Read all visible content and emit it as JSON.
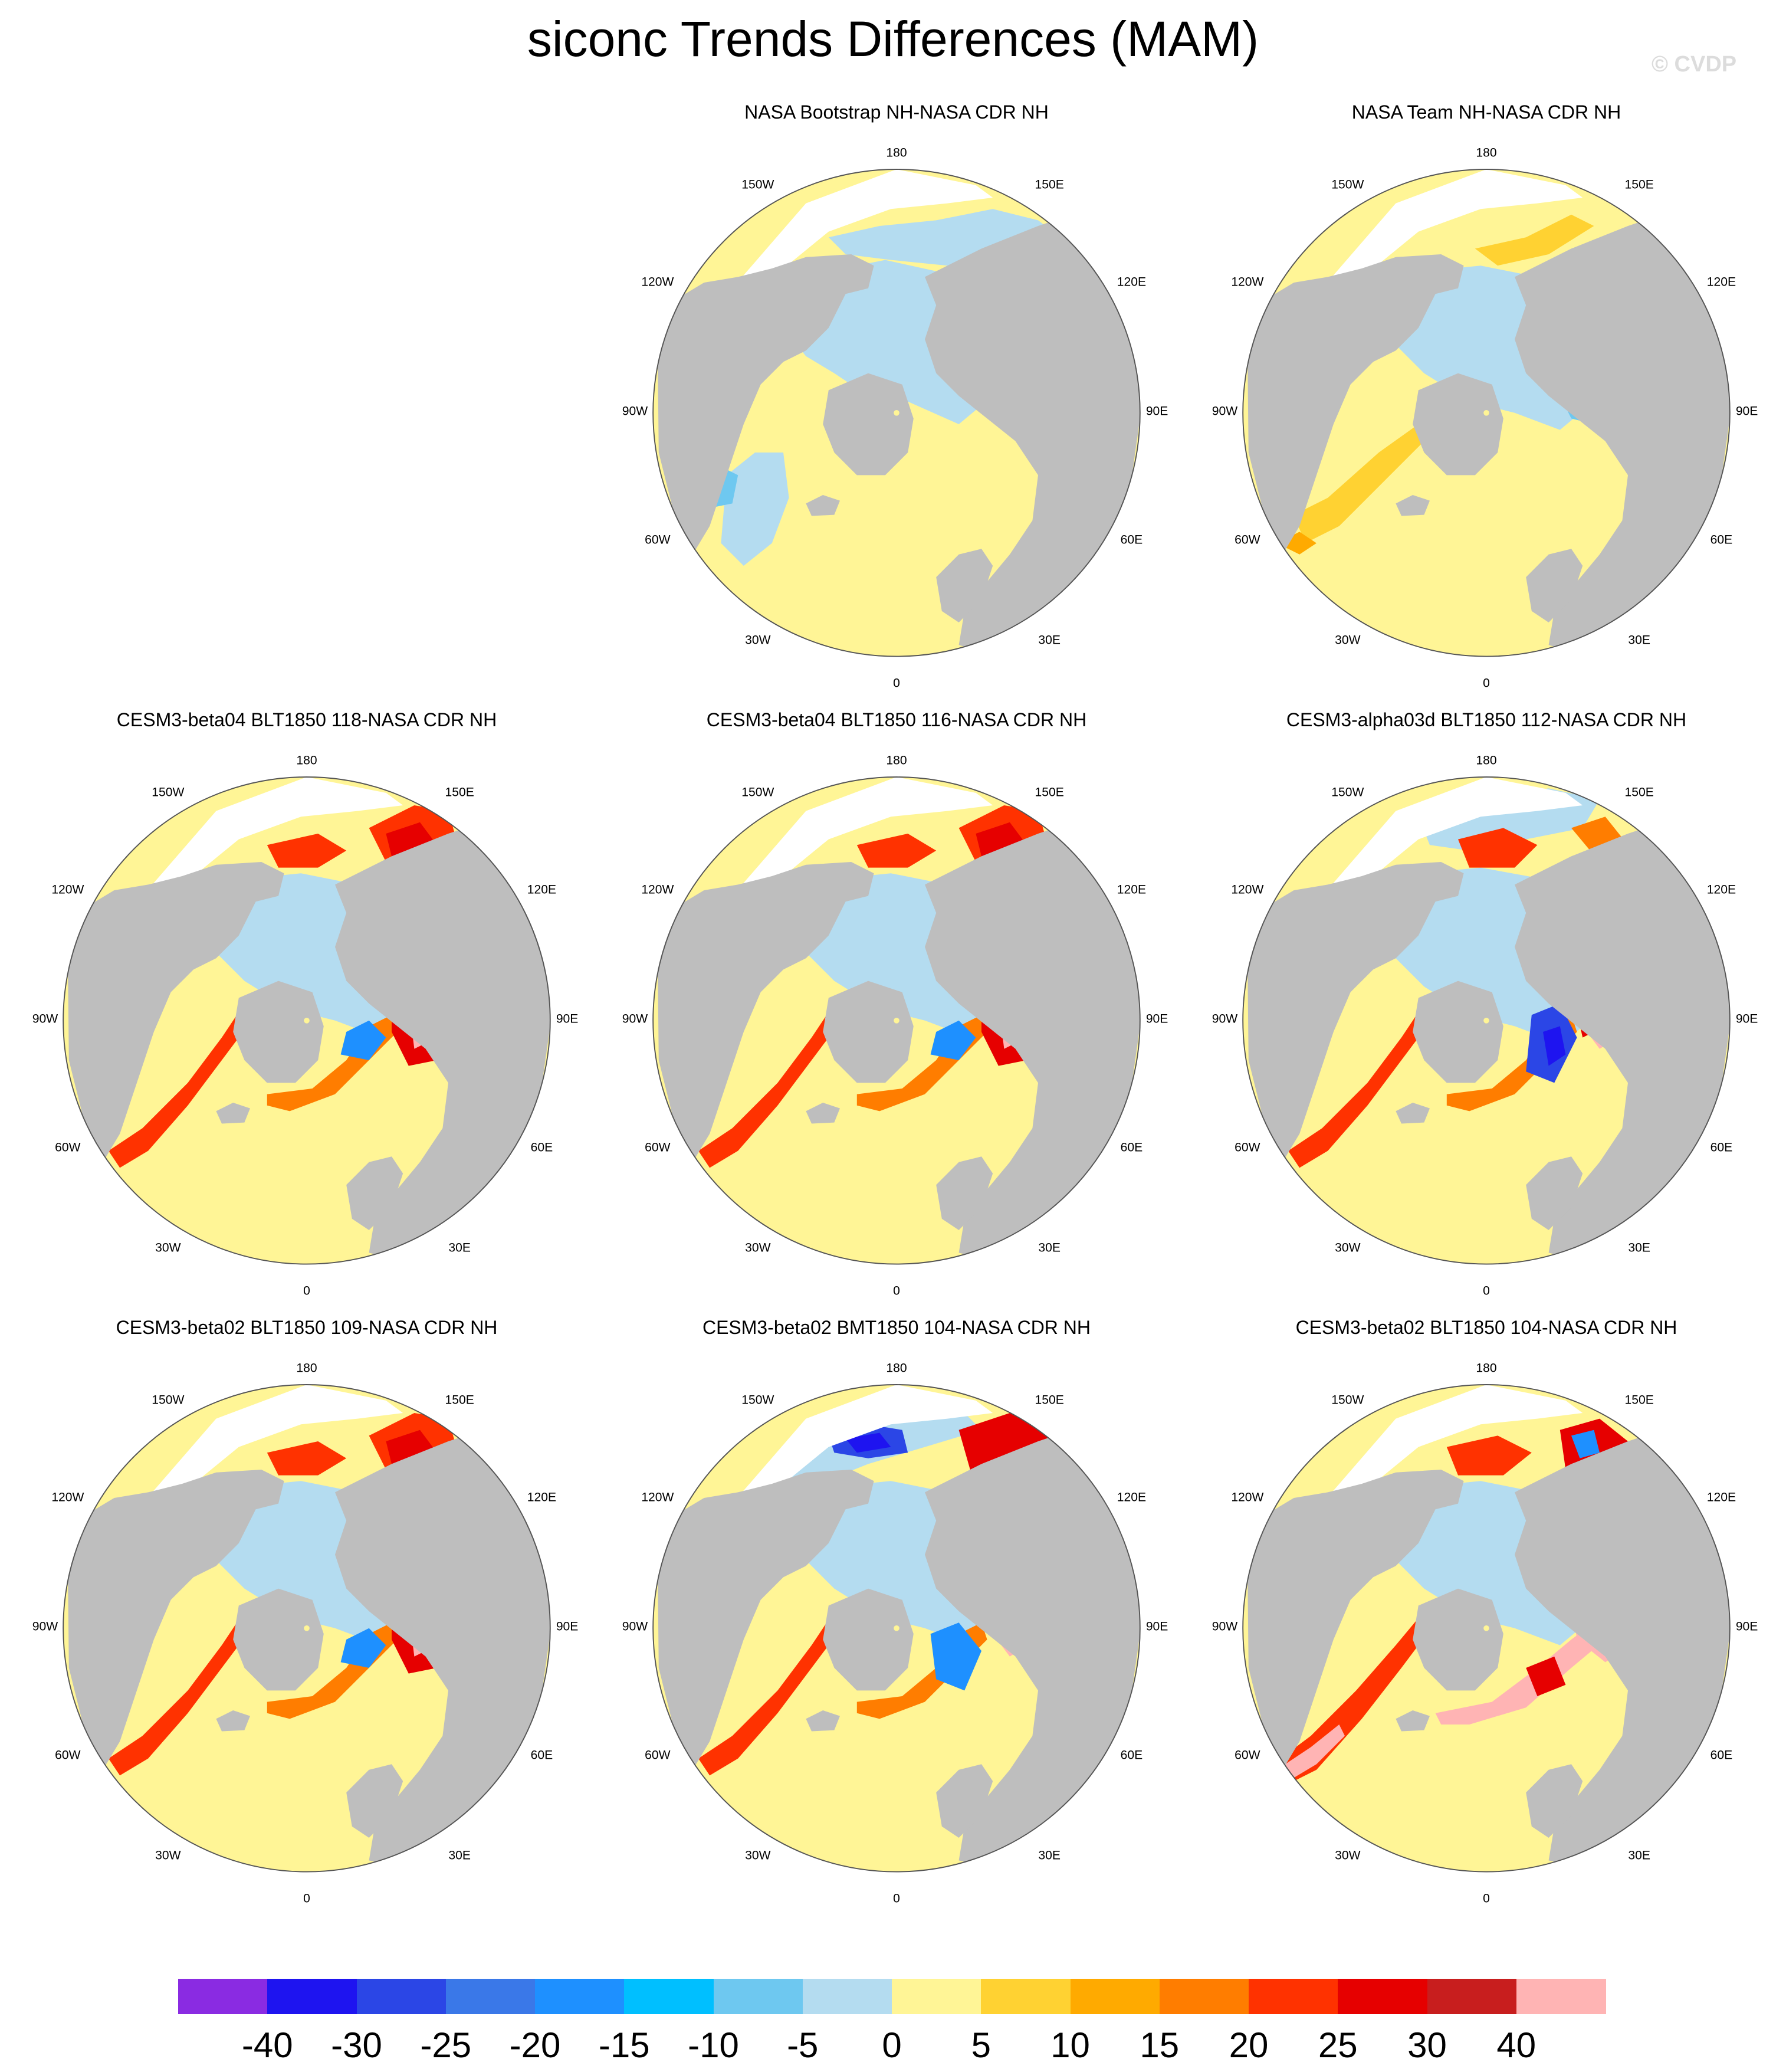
{
  "figure": {
    "title": "siconc Trends Differences (MAM)",
    "watermark": "© CVDP"
  },
  "map_labels": {
    "top": "180",
    "bottom": "0",
    "upper_left": "150W",
    "upper_right": "150E",
    "left_upper": "120W",
    "right_upper": "120E",
    "left": "90W",
    "right": "90E",
    "left_lower": "60W",
    "right_lower": "60E",
    "lower_left": "30W",
    "lower_right": "30E"
  },
  "panels": [
    {
      "title": "NASA Bootstrap NH-NASA CDR NH",
      "pattern": "bootstrap"
    },
    {
      "title": "NASA Team NH-NASA CDR NH",
      "pattern": "team"
    },
    {
      "title": "CESM3-beta04 BLT1850 118-NASA CDR NH",
      "pattern": "model_a"
    },
    {
      "title": "CESM3-beta04 BLT1850 116-NASA CDR NH",
      "pattern": "model_a"
    },
    {
      "title": "CESM3-alpha03d BLT1850 112-NASA CDR NH",
      "pattern": "model_b"
    },
    {
      "title": "CESM3-beta02 BLT1850 109-NASA CDR NH",
      "pattern": "model_a"
    },
    {
      "title": "CESM3-beta02 BMT1850 104-NASA CDR NH",
      "pattern": "model_c"
    },
    {
      "title": "CESM3-beta02 BLT1850 104-NASA CDR NH",
      "pattern": "model_d"
    }
  ],
  "colorbar": {
    "colors": [
      "#8a2be2",
      "#1e14f0",
      "#2b46e6",
      "#3a78e8",
      "#1e90ff",
      "#00bfff",
      "#6ec8f0",
      "#b4dcf0",
      "#fff596",
      "#ffd232",
      "#ffaa00",
      "#ff7d00",
      "#ff3200",
      "#e60000",
      "#c81e1e",
      "#ffb4b4"
    ],
    "labels": [
      "-40",
      "-30",
      "-25",
      "-20",
      "-15",
      "-10",
      "-5",
      "0",
      "5",
      "10",
      "15",
      "20",
      "25",
      "30",
      "40"
    ]
  },
  "colors": {
    "land": "#bebebe",
    "missing": "#ffffff",
    "neutral_positive": "#fff596",
    "small_negative": "#b4dcf0"
  }
}
